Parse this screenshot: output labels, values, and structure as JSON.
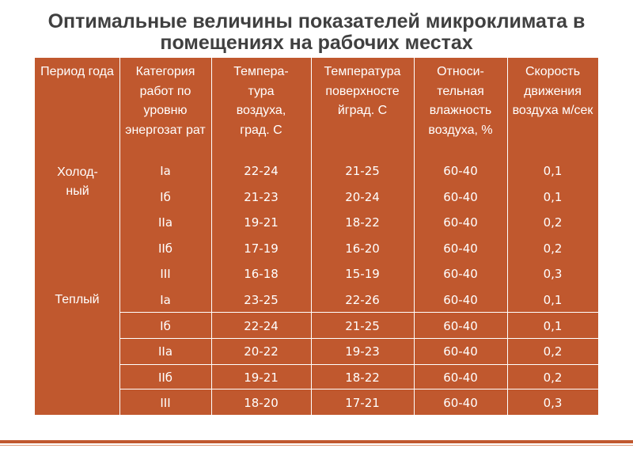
{
  "title": {
    "line1": "Оптимальные величины показателей микроклимата в",
    "line2": "помещениях на рабочих местах"
  },
  "colors": {
    "table_bg": "#c0582e",
    "title": "#404040",
    "text": "#ffffff"
  },
  "table": {
    "headers": [
      "Период года",
      "Категория работ по уровню энергозат рат",
      "Темпера-тура воздуха, град. С",
      "Температура поверхносте йград. С",
      "Относи-тельная влажность воздуха, %",
      "Скорость движения воздуха м/сек"
    ],
    "seasons": [
      "Холод-ный",
      "Теплый"
    ],
    "rows": [
      [
        "Ia",
        "22-24",
        "21-25",
        "60-40",
        "0,1"
      ],
      [
        "Iб",
        "21-23",
        "20-24",
        "60-40",
        "0,1"
      ],
      [
        "IIa",
        "19-21",
        "18-22",
        "60-40",
        "0,2"
      ],
      [
        "IIб",
        "17-19",
        "16-20",
        "60-40",
        "0,2"
      ],
      [
        "III",
        "16-18",
        "15-19",
        "60-40",
        "0,3"
      ],
      [
        "Ia",
        "23-25",
        "22-26",
        "60-40",
        "0,1"
      ],
      [
        "Iб",
        "22-24",
        "21-25",
        "60-40",
        "0,1"
      ],
      [
        "IIa",
        "20-22",
        "19-23",
        "60-40",
        "0,2"
      ],
      [
        "IIб",
        "19-21",
        "18-22",
        "60-40",
        "0,2"
      ],
      [
        "III",
        "18-20",
        "17-21",
        "60-40",
        "0,3"
      ]
    ]
  }
}
